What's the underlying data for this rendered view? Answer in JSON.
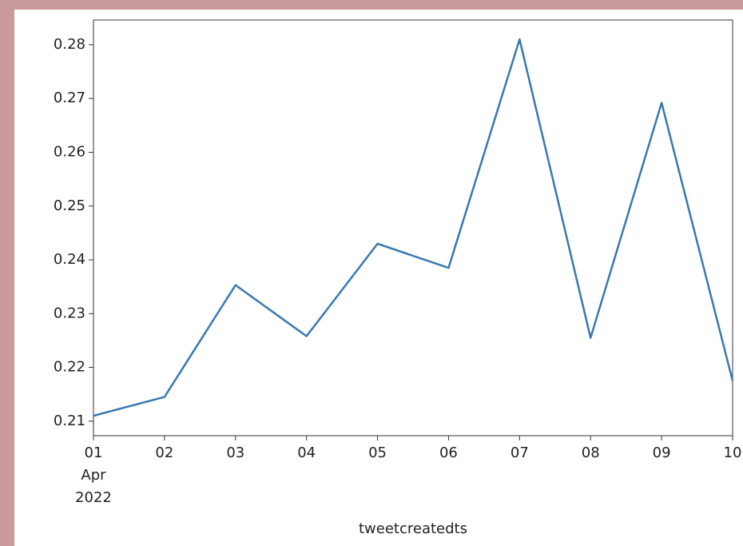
{
  "chart_data": {
    "type": "line",
    "x": [
      "2022-04-01",
      "2022-04-02",
      "2022-04-03",
      "2022-04-04",
      "2022-04-05",
      "2022-04-06",
      "2022-04-07",
      "2022-04-08",
      "2022-04-09",
      "2022-04-10"
    ],
    "series": [
      {
        "color": "#3a78b0",
        "values": [
          0.211,
          0.2145,
          0.2353,
          0.2258,
          0.243,
          0.2385,
          0.281,
          0.2255,
          0.2692,
          0.2175
        ]
      }
    ],
    "xlim": [
      "2022-04-01",
      "2022-04-10"
    ],
    "xticks": [
      {
        "value": "2022-04-01",
        "label": [
          "01",
          "Apr",
          "2022"
        ]
      },
      {
        "value": "2022-04-02",
        "label": "02"
      },
      {
        "value": "2022-04-03",
        "label": "03"
      },
      {
        "value": "2022-04-04",
        "label": "04"
      },
      {
        "value": "2022-04-05",
        "label": "05"
      },
      {
        "value": "2022-04-06",
        "label": "06"
      },
      {
        "value": "2022-04-07",
        "label": "07"
      },
      {
        "value": "2022-04-08",
        "label": "08"
      },
      {
        "value": "2022-04-09",
        "label": "09"
      },
      {
        "value": "2022-04-10",
        "label": "10"
      }
    ],
    "ylim": [
      0.2073,
      0.2846
    ],
    "yticks": [
      0.21,
      0.22,
      0.23,
      0.24,
      0.25,
      0.26,
      0.27,
      0.28
    ],
    "xlabel": "tweetcreatedts"
  }
}
